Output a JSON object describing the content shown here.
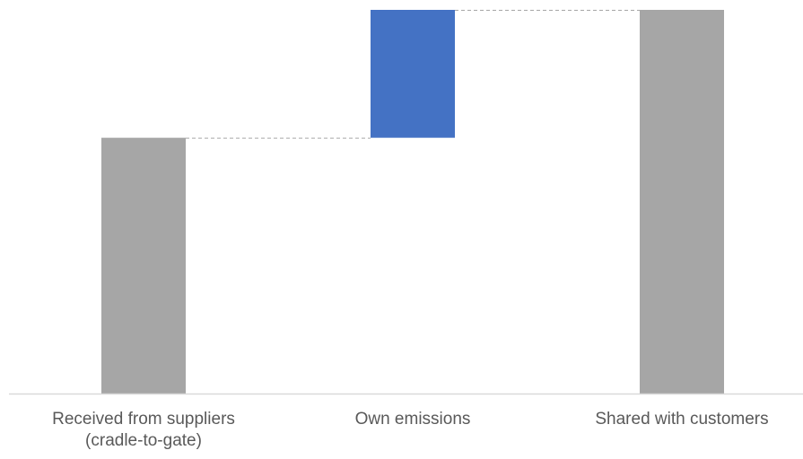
{
  "chart_data": {
    "type": "waterfall",
    "categories": [
      {
        "label": [
          "Received from suppliers",
          "(cradle-to-gate)"
        ],
        "kind": "total"
      },
      {
        "label": [
          "Own emissions"
        ],
        "kind": "increase"
      },
      {
        "label": [
          "Shared with customers"
        ],
        "kind": "total"
      }
    ],
    "values": [
      100,
      50,
      150
    ],
    "ylim": [
      0,
      150
    ],
    "connectors": true,
    "grid": false,
    "axes_visible": false,
    "colors": {
      "total": "#a6a6a6",
      "increase": "#4472c4",
      "connector": "#a6a6a6",
      "baseline": "#d9d9d9",
      "label": "#595959"
    }
  }
}
